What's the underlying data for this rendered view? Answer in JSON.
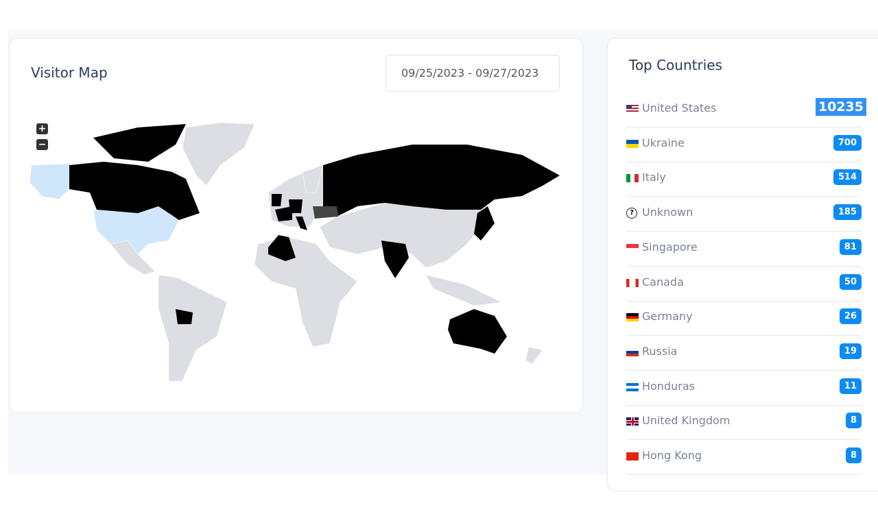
{
  "visitor_map": {
    "title": "Visitor Map",
    "date_range": "09/25/2023 - 09/27/2023",
    "zoom_in": "+",
    "zoom_out": "−",
    "colors": {
      "land": "#dcdee3",
      "visited": "#000000",
      "us": "#cfe6fb",
      "ukraine": "#444444"
    }
  },
  "top_countries": {
    "title": "Top Countries",
    "items": [
      {
        "name": "United States",
        "count": "10235",
        "flag": "us"
      },
      {
        "name": "Ukraine",
        "count": "700",
        "flag": "ua"
      },
      {
        "name": "Italy",
        "count": "514",
        "flag": "it"
      },
      {
        "name": "Unknown",
        "count": "185",
        "flag": "question-icon"
      },
      {
        "name": "Singapore",
        "count": "81",
        "flag": "sg"
      },
      {
        "name": "Canada",
        "count": "50",
        "flag": "ca"
      },
      {
        "name": "Germany",
        "count": "26",
        "flag": "de"
      },
      {
        "name": "Russia",
        "count": "19",
        "flag": "ru"
      },
      {
        "name": "Honduras",
        "count": "11",
        "flag": "hn"
      },
      {
        "name": "United Kingdom",
        "count": "8",
        "flag": "gb"
      },
      {
        "name": "Hong Kong",
        "count": "8",
        "flag": "hk"
      }
    ],
    "badge_color": "#0d8bf5"
  }
}
